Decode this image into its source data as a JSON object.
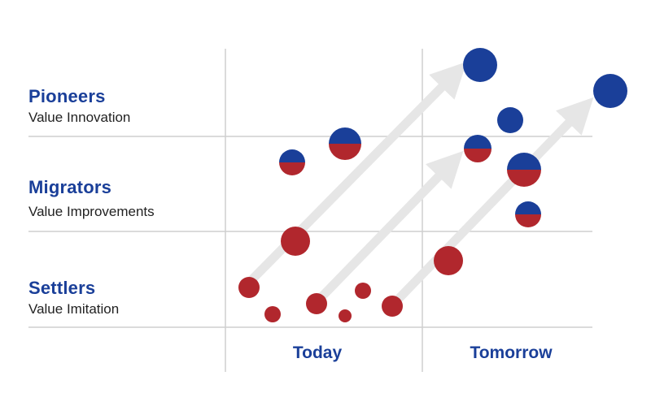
{
  "colors": {
    "blue": "#1a3f99",
    "red": "#b1272d",
    "grid": "#cfcfcf",
    "arrow": "#e6e6e6"
  },
  "rows": [
    {
      "title": "Pioneers",
      "subtitle": "Value Innovation"
    },
    {
      "title": "Migrators",
      "subtitle": "Value Improvements"
    },
    {
      "title": "Settlers",
      "subtitle": "Value Imitation"
    }
  ],
  "columns": [
    {
      "label": "Today"
    },
    {
      "label": "Tomorrow"
    }
  ]
}
